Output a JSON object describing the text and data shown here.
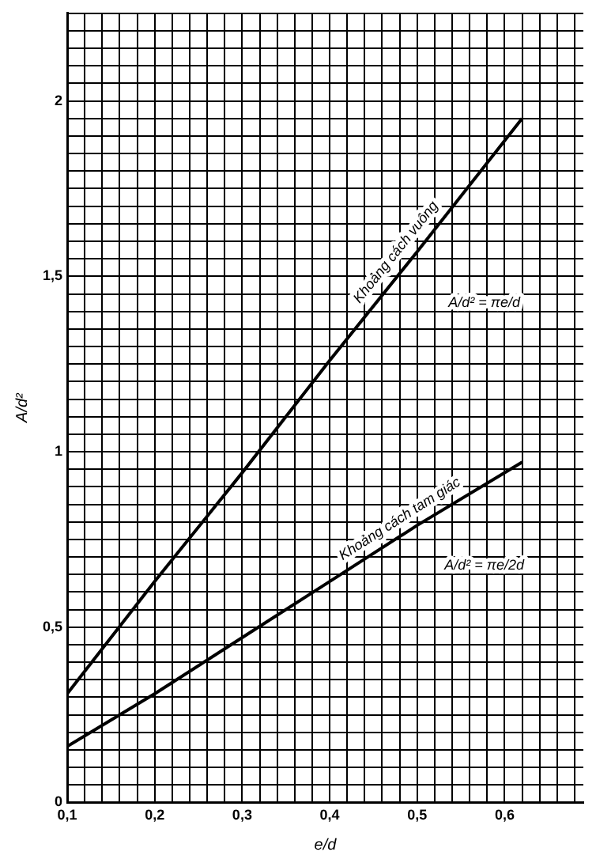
{
  "chart_data": {
    "type": "line",
    "xlabel": "e/d",
    "ylabel": "A/d²",
    "x": [
      0.1,
      0.2,
      0.3,
      0.4,
      0.5,
      0.62
    ],
    "series": [
      {
        "color": "#000000",
        "values": [
          0.31,
          0.63,
          0.94,
          1.26,
          1.57,
          1.95
        ]
      },
      {
        "color": "#000000",
        "values": [
          0.16,
          0.31,
          0.47,
          0.63,
          0.79,
          0.97
        ]
      }
    ],
    "xlim": [
      0.1,
      0.69
    ],
    "xticks": [
      {
        "value": 0.1,
        "label": "0,1"
      },
      {
        "value": 0.12,
        "label": null
      },
      {
        "value": 0.14,
        "label": null
      },
      {
        "value": 0.16,
        "label": null
      },
      {
        "value": 0.18,
        "label": null
      },
      {
        "value": 0.2,
        "label": "0,2"
      },
      {
        "value": 0.22,
        "label": null
      },
      {
        "value": 0.24,
        "label": null
      },
      {
        "value": 0.26,
        "label": null
      },
      {
        "value": 0.28,
        "label": null
      },
      {
        "value": 0.3,
        "label": "0,3"
      },
      {
        "value": 0.32,
        "label": null
      },
      {
        "value": 0.34,
        "label": null
      },
      {
        "value": 0.36,
        "label": null
      },
      {
        "value": 0.38,
        "label": null
      },
      {
        "value": 0.4,
        "label": "0,4"
      },
      {
        "value": 0.42,
        "label": null
      },
      {
        "value": 0.44,
        "label": null
      },
      {
        "value": 0.46,
        "label": null
      },
      {
        "value": 0.48,
        "label": null
      },
      {
        "value": 0.5,
        "label": "0,5"
      },
      {
        "value": 0.52,
        "label": null
      },
      {
        "value": 0.54,
        "label": null
      },
      {
        "value": 0.56,
        "label": null
      },
      {
        "value": 0.58,
        "label": null
      },
      {
        "value": 0.6,
        "label": "0,6"
      },
      {
        "value": 0.62,
        "label": null
      },
      {
        "value": 0.64,
        "label": null
      },
      {
        "value": 0.66,
        "label": null
      },
      {
        "value": 0.68,
        "label": null
      }
    ],
    "ylim": [
      0,
      2.25
    ],
    "yticks": [
      0,
      {
        "value": 0.05,
        "label": null
      },
      {
        "value": 0.1,
        "label": null
      },
      {
        "value": 0.15,
        "label": null
      },
      {
        "value": 0.2,
        "label": null
      },
      {
        "value": 0.25,
        "label": null
      },
      {
        "value": 0.3,
        "label": null
      },
      {
        "value": 0.35,
        "label": null
      },
      {
        "value": 0.4,
        "label": null
      },
      {
        "value": 0.45,
        "label": null
      },
      {
        "value": 0.5,
        "label": "0,5"
      },
      {
        "value": 0.55,
        "label": null
      },
      {
        "value": 0.6,
        "label": null
      },
      {
        "value": 0.65,
        "label": null
      },
      {
        "value": 0.7,
        "label": null
      },
      {
        "value": 0.75,
        "label": null
      },
      {
        "value": 0.8,
        "label": null
      },
      {
        "value": 0.85,
        "label": null
      },
      {
        "value": 0.9,
        "label": null
      },
      {
        "value": 0.95,
        "label": null
      },
      1,
      {
        "value": 1.05,
        "label": null
      },
      {
        "value": 1.1,
        "label": null
      },
      {
        "value": 1.15,
        "label": null
      },
      {
        "value": 1.2,
        "label": null
      },
      {
        "value": 1.25,
        "label": null
      },
      {
        "value": 1.3,
        "label": null
      },
      {
        "value": 1.35,
        "label": null
      },
      {
        "value": 1.4,
        "label": null
      },
      {
        "value": 1.45,
        "label": null
      },
      {
        "value": 1.5,
        "label": "1,5"
      },
      {
        "value": 1.55,
        "label": null
      },
      {
        "value": 1.6,
        "label": null
      },
      {
        "value": 1.65,
        "label": null
      },
      {
        "value": 1.7,
        "label": null
      },
      {
        "value": 1.75,
        "label": null
      },
      {
        "value": 1.8,
        "label": null
      },
      {
        "value": 1.85,
        "label": null
      },
      {
        "value": 1.9,
        "label": null
      },
      {
        "value": 1.95,
        "label": null
      },
      2,
      {
        "value": 2.05,
        "label": null
      },
      {
        "value": 2.1,
        "label": null
      },
      {
        "value": 2.15,
        "label": null
      },
      {
        "value": 2.2,
        "label": null
      },
      {
        "value": 2.25,
        "label": null
      }
    ],
    "grid": true,
    "legend": false,
    "marker": "none",
    "line_style": "solid",
    "annotations": [
      {
        "text": "Khoảng cách vuông",
        "x": 0.49,
        "y": 1.54
      },
      "A/d² = πe/d",
      {
        "text": "Khoảng cách tam giác",
        "x": 0.49,
        "y": 0.77
      },
      "A/d² = πe/2d"
    ]
  }
}
